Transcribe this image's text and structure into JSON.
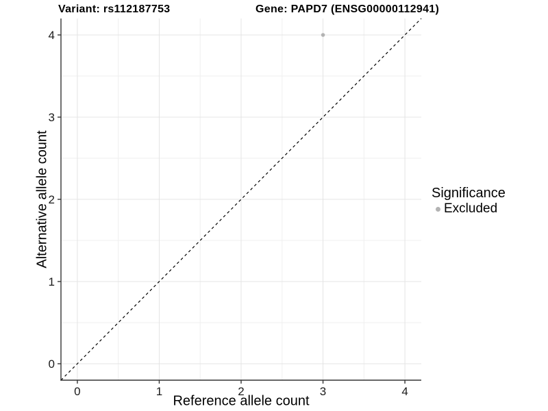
{
  "header": {
    "title_variant": "Variant: rs112187753",
    "title_gene": "Gene: PAPD7 (ENSG00000112941)"
  },
  "chart_data": {
    "type": "scatter",
    "title": "Variant: rs112187753    Gene: PAPD7 (ENSG00000112941)",
    "xlabel": "Reference allele count",
    "ylabel": "Alternative allele count",
    "xlim": [
      -0.2,
      4.2
    ],
    "ylim": [
      -0.2,
      4.2
    ],
    "x_ticks": [
      0,
      1,
      2,
      3,
      4
    ],
    "y_ticks": [
      0,
      1,
      2,
      3,
      4
    ],
    "x_minor_ticks": [
      0.5,
      1.5,
      2.5,
      3.5
    ],
    "y_minor_ticks": [
      0.5,
      1.5,
      2.5,
      3.5
    ],
    "grid": true,
    "legend_position": "right",
    "series": [
      {
        "name": "Excluded",
        "color": "#b3b3b3",
        "points": [
          {
            "x": 3,
            "y": 4
          }
        ]
      }
    ],
    "reference_line": {
      "type": "abline",
      "intercept": 0,
      "slope": 1,
      "style": "dashed",
      "color": "#000000"
    },
    "legend": {
      "title": "Significance",
      "items": [
        {
          "label": "Excluded",
          "color": "#b3b3b3",
          "marker": "circle"
        }
      ]
    },
    "colors": {
      "major_grid": "#e4e4e4",
      "minor_grid": "#efefef",
      "axis_line": "#333333",
      "tick_mark": "#333333",
      "tick_label": "#1a1a1a",
      "point": "#b3b3b3",
      "background": "#ffffff"
    }
  }
}
